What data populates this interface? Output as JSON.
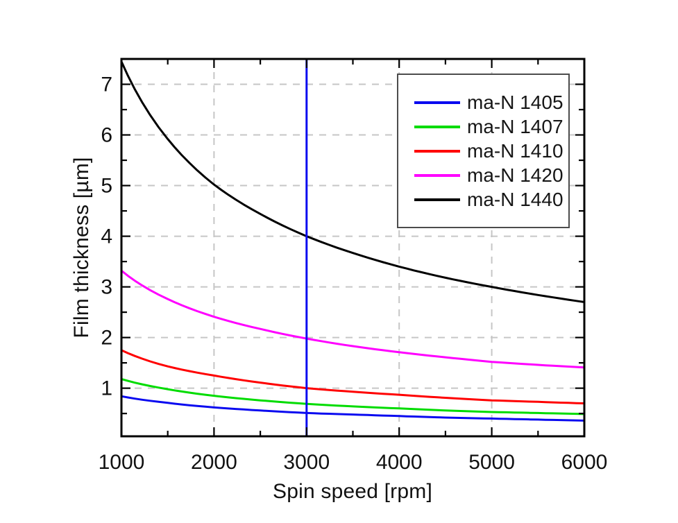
{
  "chart_data": {
    "type": "line",
    "title": "",
    "xlabel": "Spin speed [rpm]",
    "ylabel": "Film thickness [µm]",
    "xlim": [
      1000,
      6000
    ],
    "ylim": [
      0.05,
      7.5
    ],
    "x_major_ticks": [
      1000,
      2000,
      3000,
      4000,
      5000,
      6000
    ],
    "x_minor_ticks": [
      1500,
      2500,
      3500,
      4500,
      5500
    ],
    "y_major_ticks": [
      1,
      2,
      3,
      4,
      5,
      6,
      7
    ],
    "y_minor_ticks": [
      0.5,
      1.5,
      2.5,
      3.5,
      4.5,
      5.5,
      6.5
    ],
    "grid": {
      "style": "dashed",
      "color": "#c6c6c6",
      "x_lines": [
        2000,
        3000,
        4000,
        5000
      ],
      "y_lines": [
        1,
        2,
        3,
        4,
        5,
        6,
        7
      ]
    },
    "legend": {
      "position": "upper-right",
      "entries": [
        "ma-N 1405",
        "ma-N 1407",
        "ma-N 1410",
        "ma-N 1420",
        "ma-N 1440"
      ]
    },
    "x": [
      1000,
      1500,
      2000,
      2500,
      3000,
      3500,
      4000,
      4500,
      5000,
      5500,
      6000
    ],
    "series": [
      {
        "name": "ma-N 1405",
        "color": "#0a0af0",
        "values": [
          0.84,
          0.71,
          0.62,
          0.56,
          0.51,
          0.48,
          0.45,
          0.42,
          0.4,
          0.38,
          0.36
        ]
      },
      {
        "name": "ma-N 1407",
        "color": "#00dc00",
        "values": [
          1.18,
          0.98,
          0.85,
          0.76,
          0.69,
          0.64,
          0.6,
          0.56,
          0.53,
          0.51,
          0.49
        ]
      },
      {
        "name": "ma-N 1410",
        "color": "#ff0000",
        "values": [
          1.75,
          1.43,
          1.25,
          1.11,
          1.0,
          0.93,
          0.87,
          0.81,
          0.76,
          0.73,
          0.7
        ]
      },
      {
        "name": "ma-N 1420",
        "color": "#ff00ff",
        "values": [
          3.32,
          2.76,
          2.41,
          2.17,
          1.98,
          1.83,
          1.71,
          1.61,
          1.52,
          1.46,
          1.41
        ]
      },
      {
        "name": "ma-N 1440",
        "color": "#000000",
        "values": [
          7.45,
          5.92,
          5.02,
          4.44,
          4.0,
          3.67,
          3.4,
          3.18,
          3.0,
          2.84,
          2.7
        ]
      }
    ],
    "reference_line": {
      "axis": "x",
      "value": 3000,
      "color": "#0a0af0"
    },
    "frame_color": "#000000"
  }
}
